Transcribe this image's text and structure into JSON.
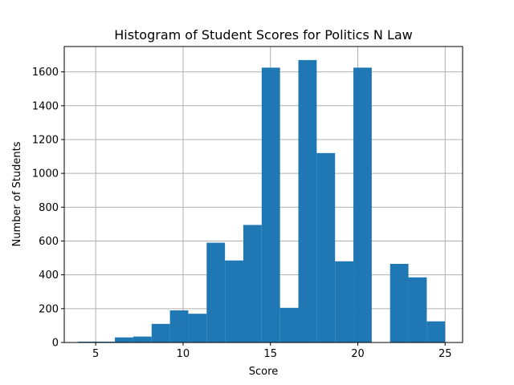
{
  "chart_data": {
    "type": "bar",
    "title": "Histogram of Student Scores for Politics N Law",
    "xlabel": "Score",
    "ylabel": "Number of Students",
    "xlim": [
      3.2,
      26.0
    ],
    "ylim": [
      0,
      1750
    ],
    "grid": true,
    "color": "#1f77b4",
    "xticks": [
      5,
      10,
      15,
      20,
      25
    ],
    "yticks": [
      0,
      200,
      400,
      600,
      800,
      1000,
      1200,
      1400,
      1600
    ],
    "bins": [
      {
        "x0": 4.0,
        "x1": 5.05,
        "count": 5
      },
      {
        "x0": 5.05,
        "x1": 6.1,
        "count": 5
      },
      {
        "x0": 6.1,
        "x1": 7.15,
        "count": 30
      },
      {
        "x0": 7.15,
        "x1": 8.2,
        "count": 35
      },
      {
        "x0": 8.2,
        "x1": 9.25,
        "count": 110
      },
      {
        "x0": 9.25,
        "x1": 10.3,
        "count": 190
      },
      {
        "x0": 10.3,
        "x1": 11.35,
        "count": 170
      },
      {
        "x0": 11.35,
        "x1": 12.4,
        "count": 590
      },
      {
        "x0": 12.4,
        "x1": 13.45,
        "count": 485
      },
      {
        "x0": 13.45,
        "x1": 14.5,
        "count": 695
      },
      {
        "x0": 14.5,
        "x1": 15.55,
        "count": 1625
      },
      {
        "x0": 15.55,
        "x1": 16.6,
        "count": 205
      },
      {
        "x0": 16.6,
        "x1": 17.65,
        "count": 1670
      },
      {
        "x0": 17.65,
        "x1": 18.7,
        "count": 1120
      },
      {
        "x0": 18.7,
        "x1": 19.75,
        "count": 480
      },
      {
        "x0": 19.75,
        "x1": 20.8,
        "count": 1625
      },
      {
        "x0": 20.8,
        "x1": 21.85,
        "count": 0
      },
      {
        "x0": 21.85,
        "x1": 22.9,
        "count": 465
      },
      {
        "x0": 22.9,
        "x1": 23.95,
        "count": 385
      },
      {
        "x0": 23.95,
        "x1": 25.0,
        "count": 125
      }
    ]
  }
}
